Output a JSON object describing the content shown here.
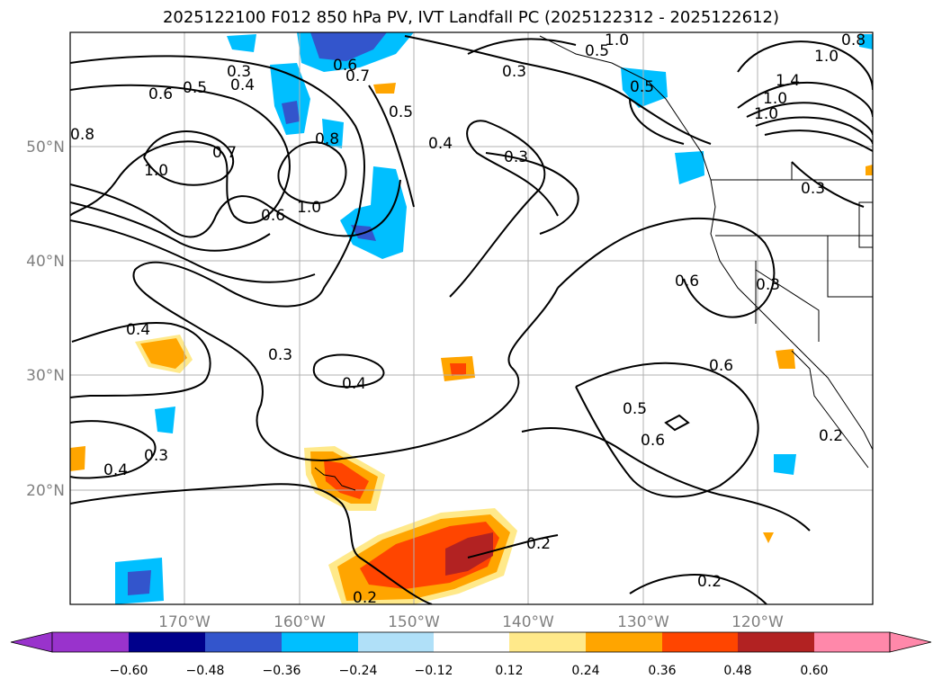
{
  "title": "2025122100 F012 850 hPa PV, IVT Landfall PC (2025122312 - 2025122612)",
  "map": {
    "lat_labels": [
      "50°N",
      "40°N",
      "30°N",
      "20°N"
    ],
    "lon_labels": [
      "170°W",
      "160°W",
      "150°W",
      "140°W",
      "130°W",
      "120°W"
    ],
    "contour_labels": [
      "0.3",
      "0.4",
      "0.5",
      "0.6",
      "0.7",
      "0.8",
      "1.0",
      "0.8",
      "0.5",
      "0.4",
      "0.3",
      "0.6",
      "0.3",
      "0.4",
      "0.6",
      "0.5",
      "0.6",
      "0.6",
      "0.3",
      "0.4",
      "0.3",
      "0.2",
      "0.2",
      "0.2",
      "0.3",
      "0.4",
      "1.0",
      "1.0",
      "1.0",
      "1.4",
      "1.0",
      "0.8",
      "0.7",
      "0.5",
      "1.0",
      "0.3",
      "0.2",
      "0.6",
      "0.5"
    ]
  },
  "colorbar": {
    "tick_labels": [
      "−0.60",
      "−0.48",
      "−0.36",
      "−0.24",
      "−0.12",
      "0.12",
      "0.24",
      "0.36",
      "0.48",
      "0.60"
    ],
    "colors": [
      "#9933cc",
      "#00008b",
      "#3355cc",
      "#00bfff",
      "#b0e0f8",
      "#ffffff",
      "#ffe98a",
      "#ffa500",
      "#ff4500",
      "#b22222",
      "#ff88aa"
    ]
  },
  "colors": {
    "neg_strong": "#3355cc",
    "neg_medium": "#00bfff",
    "neg_light": "#b0e0f8",
    "pos_light": "#ffe98a",
    "pos_medium": "#ffa500",
    "pos_strong": "#ff4500",
    "pos_vstrong": "#b22222"
  }
}
